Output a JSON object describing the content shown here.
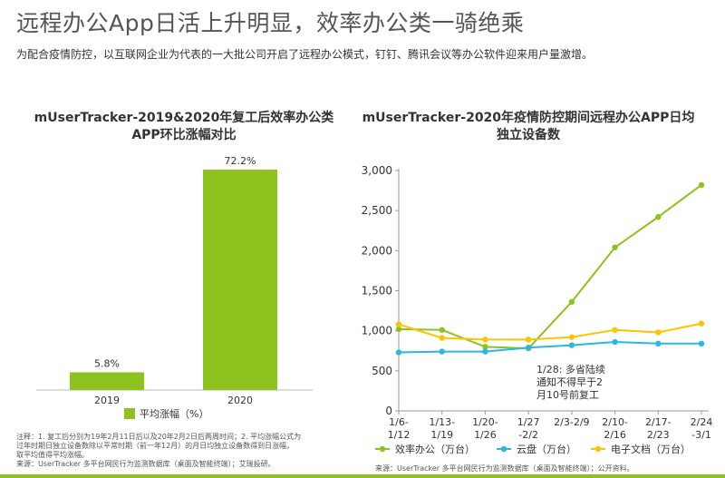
{
  "header": {
    "title": "远程办公App日活上升明显，效率办公类一骑绝乘",
    "subtitle": "为配合疫情防控，以互联网企业为代表的一大批公司开启了远程办公模式，钉钉、腾讯会议等办公软件迎来用户量激增。"
  },
  "notes": {
    "left_lines": [
      "注释：1. 复工后分别为19年2月11日后以及20年2月2日后两周时间；2. 平均涨幅公式为",
      "过年时期日独立设备数除以平常时期（前一年12月）的月日均独立设备数得到日涨幅，",
      "取平均值得平均涨幅。",
      "来源：UserTracker 多平台网民行为监测数据库（桌面及智能终端）；艾瑞投研。"
    ],
    "right_source": "来源：UserTracker 多平台网民行为监测数据库（桌面及智能终端）；公开资料。"
  },
  "colors": {
    "bar": "#8dc21f",
    "efficiency": "#8dc21f",
    "cloud": "#2ab7e0",
    "docs": "#ffc400"
  },
  "chart_data": [
    {
      "type": "bar",
      "title": "mUserTracker-2019&2020年复工后效率办公类APP环比涨幅对比",
      "categories": [
        "2019",
        "2020"
      ],
      "values": [
        5.8,
        72.2
      ],
      "value_labels": [
        "5.8%",
        "72.2%"
      ],
      "series": [
        {
          "name": "平均涨幅（%）",
          "values": [
            5.8,
            72.2
          ]
        }
      ],
      "ylim": [
        0,
        80
      ],
      "legend": "bottom",
      "grid": false
    },
    {
      "type": "line",
      "title": "mUserTracker-2020年疫情防控期间远程办公APP日均独立设备数",
      "categories": [
        "1/6-1/12",
        "1/13-1/19",
        "1/20-1/26",
        "1/27-2/2",
        "2/3-2/9",
        "2/10-2/16",
        "2/17-2/23",
        "2/24-3/1"
      ],
      "tick_labels": [
        [
          "1/6-",
          "1/12"
        ],
        [
          "1/13-",
          "1/19"
        ],
        [
          "1/20-",
          "1/26"
        ],
        [
          "1/27",
          "-2/2"
        ],
        [
          "2/3-2/9",
          ""
        ],
        [
          "2/10-",
          "2/16"
        ],
        [
          "2/17-",
          "2/23"
        ],
        [
          "2/24",
          "-3/1"
        ]
      ],
      "yticks": [
        "0",
        "500",
        "1,000",
        "1,500",
        "2,000",
        "2,500",
        "3,000"
      ],
      "ylim": [
        0,
        3000
      ],
      "series": [
        {
          "name": "效率办公（万台）",
          "values": [
            1020,
            1010,
            800,
            780,
            1360,
            2040,
            2420,
            2820
          ]
        },
        {
          "name": "云盘（万台）",
          "values": [
            730,
            740,
            740,
            790,
            820,
            860,
            840,
            840
          ]
        },
        {
          "name": "电子文档（万台）",
          "values": [
            1080,
            910,
            890,
            890,
            920,
            1010,
            980,
            1090
          ]
        }
      ],
      "annotation": [
        "1/28: 多省陆续",
        "通知不得早于2",
        "月10号前复工"
      ],
      "legend": "bottom",
      "grid": false
    }
  ]
}
